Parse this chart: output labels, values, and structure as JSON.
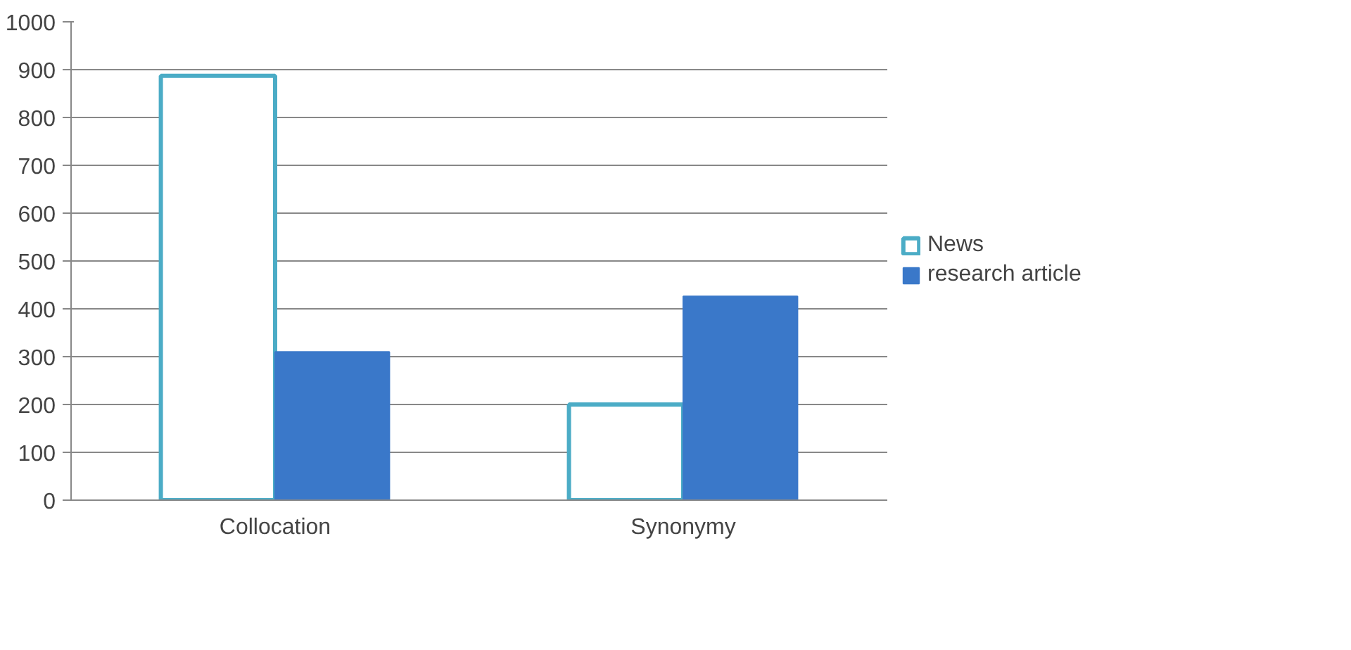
{
  "chart_data": {
    "type": "bar",
    "categories": [
      "Collocation",
      "Synonymy"
    ],
    "series": [
      {
        "name": "News",
        "color": "#4bacc6",
        "values": [
          887,
          200
        ]
      },
      {
        "name": "research article",
        "color": "#3a78c9",
        "values": [
          310,
          426
        ]
      }
    ],
    "ylim": [
      0,
      1000
    ],
    "yticks": [
      0,
      100,
      200,
      300,
      400,
      500,
      600,
      700,
      800,
      900,
      1000
    ],
    "grid": "y",
    "legend": "right"
  }
}
